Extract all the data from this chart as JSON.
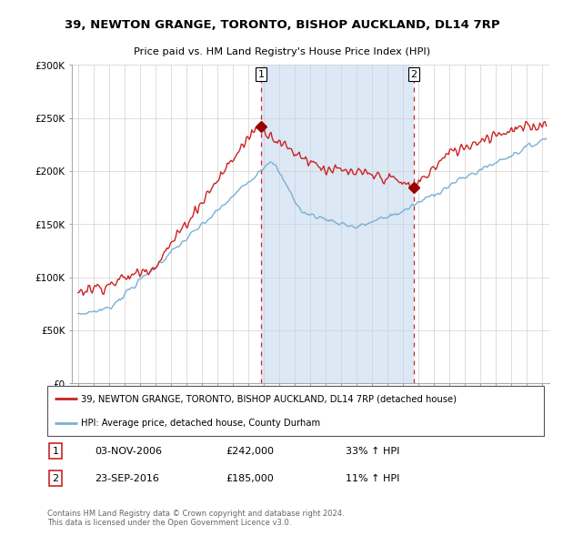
{
  "title": "39, NEWTON GRANGE, TORONTO, BISHOP AUCKLAND, DL14 7RP",
  "subtitle": "Price paid vs. HM Land Registry's House Price Index (HPI)",
  "red_label": "39, NEWTON GRANGE, TORONTO, BISHOP AUCKLAND, DL14 7RP (detached house)",
  "blue_label": "HPI: Average price, detached house, County Durham",
  "annotation1": {
    "num": "1",
    "date": "03-NOV-2006",
    "price": "£242,000",
    "hpi": "33% ↑ HPI",
    "x_year": 2006.84
  },
  "annotation2": {
    "num": "2",
    "date": "23-SEP-2016",
    "price": "£185,000",
    "hpi": "11% ↑ HPI",
    "x_year": 2016.73
  },
  "footer": "Contains HM Land Registry data © Crown copyright and database right 2024.\nThis data is licensed under the Open Government Licence v3.0.",
  "ylim": [
    0,
    300000
  ],
  "yticks": [
    0,
    50000,
    100000,
    150000,
    200000,
    250000,
    300000
  ],
  "ytick_labels": [
    "£0",
    "£50K",
    "£100K",
    "£150K",
    "£200K",
    "£250K",
    "£300K"
  ],
  "xlim_start": 1994.6,
  "xlim_end": 2025.5,
  "background_color": "#ffffff",
  "chart_bg": "#f0f4fa",
  "grid_color": "#d0d0d0",
  "red_color": "#cc2222",
  "blue_color": "#7bafd4",
  "vline_color": "#cc2222",
  "shade_color": "#dce8f5",
  "marker_color": "#990000",
  "sale1_price": 242000,
  "sale2_price": 185000
}
